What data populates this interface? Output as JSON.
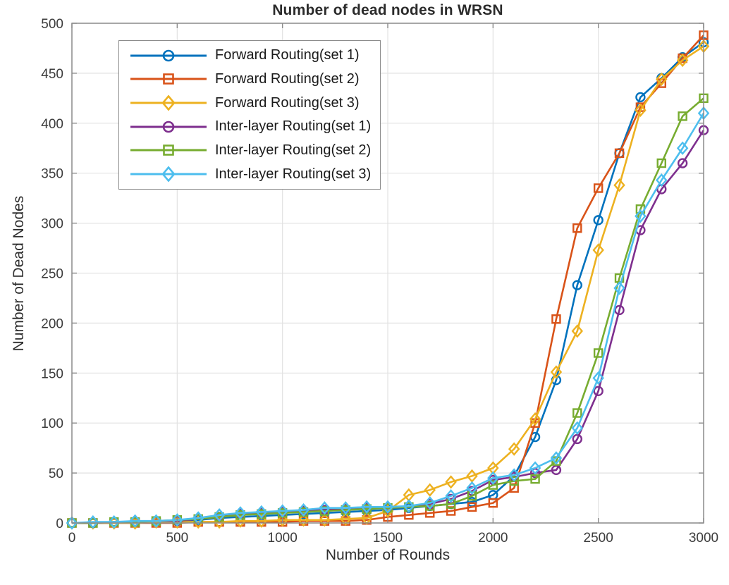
{
  "chart_data": {
    "type": "line",
    "title": "Number of dead nodes in WRSN",
    "xlabel": "Number of Rounds",
    "ylabel": "Number of Dead Nodes",
    "xlim": [
      0,
      3000
    ],
    "ylim": [
      0,
      500
    ],
    "xticks": [
      0,
      500,
      1000,
      1500,
      2000,
      2500,
      3000
    ],
    "yticks": [
      0,
      50,
      100,
      150,
      200,
      250,
      300,
      350,
      400,
      450,
      500
    ],
    "grid": true,
    "legend_position": "upper-left",
    "axis_color": "#8c8c8c",
    "grid_color": "#e2e2e2",
    "tick_text_color": "#3b3b3b",
    "x": [
      0,
      100,
      200,
      300,
      400,
      500,
      600,
      700,
      800,
      900,
      1000,
      1100,
      1200,
      1300,
      1400,
      1500,
      1600,
      1700,
      1800,
      1900,
      2000,
      2100,
      2200,
      2300,
      2400,
      2500,
      2600,
      2700,
      2800,
      2900,
      3000
    ],
    "series": [
      {
        "name": "Forward Routing(set 1)",
        "color": "#0072BD",
        "marker": "circle",
        "values": [
          0,
          0,
          0,
          1,
          1,
          2,
          3,
          5,
          6,
          7,
          8,
          9,
          10,
          11,
          12,
          13,
          15,
          17,
          19,
          21,
          28,
          47,
          86,
          143,
          238,
          303,
          370,
          426,
          445,
          466,
          481
        ]
      },
      {
        "name": "Forward Routing(set 2)",
        "color": "#D95319",
        "marker": "square",
        "values": [
          0,
          0,
          0,
          0,
          0,
          0,
          1,
          1,
          1,
          1,
          1,
          2,
          2,
          2,
          3,
          6,
          8,
          10,
          12,
          16,
          20,
          35,
          100,
          204,
          295,
          335,
          370,
          416,
          440,
          465,
          488
        ]
      },
      {
        "name": "Forward Routing(set 3)",
        "color": "#EDB120",
        "marker": "diamond",
        "values": [
          0,
          0,
          0,
          0,
          1,
          1,
          1,
          1,
          2,
          2,
          3,
          3,
          3,
          4,
          5,
          12,
          28,
          33,
          41,
          47,
          55,
          74,
          104,
          151,
          192,
          273,
          338,
          413,
          444,
          463,
          477
        ]
      },
      {
        "name": "Inter-layer Routing(set 1)",
        "color": "#7E2F8E",
        "marker": "circle",
        "values": [
          0,
          0,
          1,
          1,
          2,
          2,
          4,
          6,
          9,
          10,
          11,
          12,
          13,
          14,
          15,
          15,
          16,
          19,
          24,
          32,
          43,
          46,
          50,
          53,
          84,
          132,
          213,
          293,
          334,
          360,
          393
        ]
      },
      {
        "name": "Inter-layer Routing(set 2)",
        "color": "#77AC30",
        "marker": "square",
        "values": [
          0,
          0,
          1,
          1,
          2,
          3,
          4,
          6,
          8,
          9,
          10,
          11,
          12,
          13,
          14,
          15,
          16,
          17,
          19,
          27,
          38,
          42,
          44,
          62,
          110,
          170,
          245,
          314,
          360,
          407,
          425
        ]
      },
      {
        "name": "Inter-layer Routing(set 3)",
        "color": "#4DBEEE",
        "marker": "diamond",
        "values": [
          0,
          1,
          1,
          2,
          2,
          3,
          5,
          8,
          10,
          11,
          12,
          13,
          15,
          15,
          16,
          16,
          17,
          20,
          27,
          35,
          45,
          48,
          55,
          65,
          95,
          145,
          235,
          307,
          343,
          375,
          410
        ]
      }
    ]
  }
}
